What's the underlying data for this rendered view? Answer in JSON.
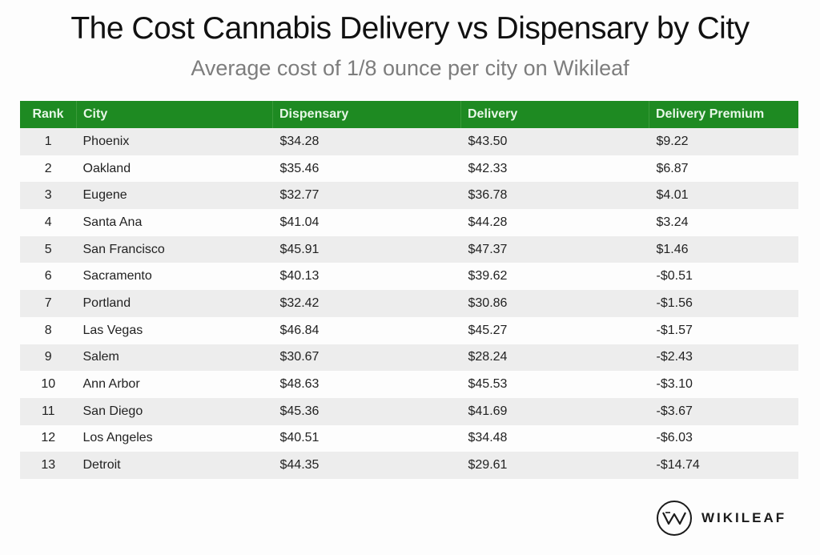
{
  "header": {
    "title": "The Cost Cannabis Delivery vs Dispensary by City",
    "subtitle": "Average cost of 1/8 ounce per city on Wikileaf"
  },
  "brand": {
    "name": "WIKILEAF",
    "icon": "wikileaf-w-logo-icon",
    "accent": "#1e8a22"
  },
  "chart_data": {
    "type": "table",
    "title": "The Cost Cannabis Delivery vs Dispensary by City",
    "subtitle": "Average cost of 1/8 ounce per city on Wikileaf",
    "columns": [
      "Rank",
      "City",
      "Dispensary",
      "Delivery",
      "Delivery Premium"
    ],
    "rows": [
      [
        "1",
        "Phoenix",
        "$34.28",
        "$43.50",
        "$9.22"
      ],
      [
        "2",
        "Oakland",
        "$35.46",
        "$42.33",
        "$6.87"
      ],
      [
        "3",
        "Eugene",
        "$32.77",
        "$36.78",
        "$4.01"
      ],
      [
        "4",
        "Santa Ana",
        "$41.04",
        "$44.28",
        "$3.24"
      ],
      [
        "5",
        "San Francisco",
        "$45.91",
        "$47.37",
        "$1.46"
      ],
      [
        "6",
        "Sacramento",
        "$40.13",
        "$39.62",
        "-$0.51"
      ],
      [
        "7",
        "Portland",
        "$32.42",
        "$30.86",
        "-$1.56"
      ],
      [
        "8",
        "Las Vegas",
        "$46.84",
        "$45.27",
        "-$1.57"
      ],
      [
        "9",
        "Salem",
        "$30.67",
        "$28.24",
        "-$2.43"
      ],
      [
        "10",
        "Ann Arbor",
        "$48.63",
        "$45.53",
        "-$3.10"
      ],
      [
        "11",
        "San Diego",
        "$45.36",
        "$41.69",
        "-$3.67"
      ],
      [
        "12",
        "Los Angeles",
        "$40.51",
        "$34.48",
        "-$6.03"
      ],
      [
        "13",
        "Detroit",
        "$44.35",
        "$29.61",
        "-$14.74"
      ]
    ]
  }
}
